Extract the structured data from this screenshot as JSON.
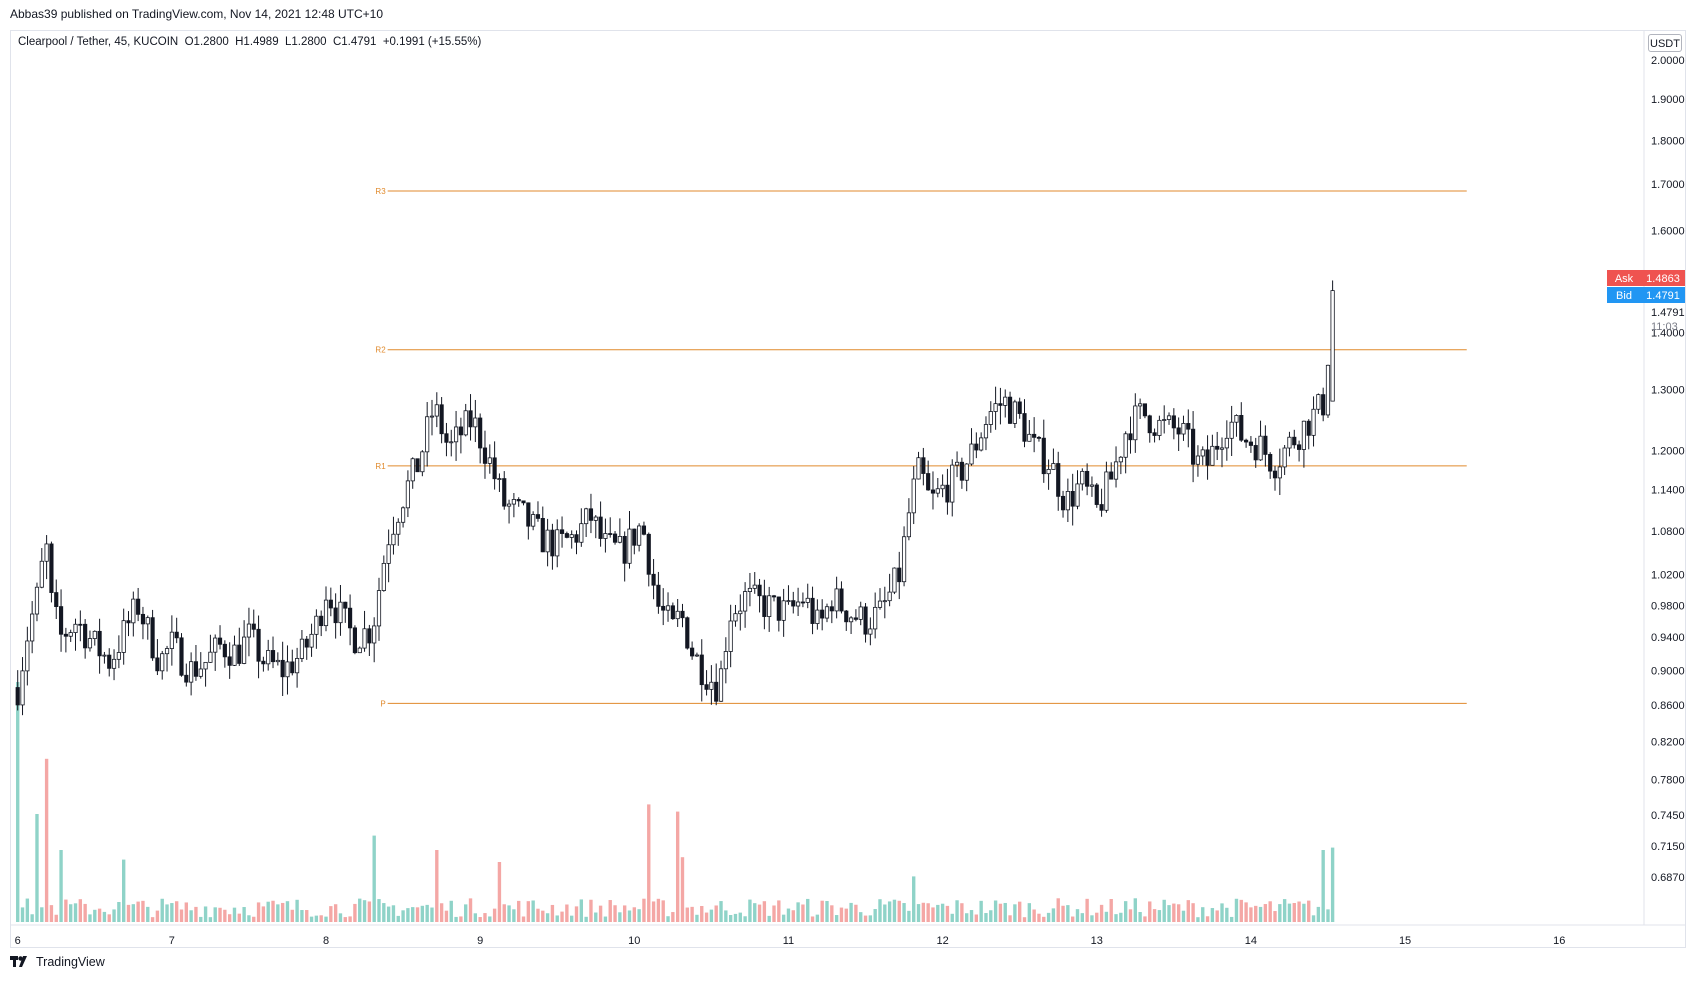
{
  "publish_line": "Abbas39 published on TradingView.com, Nov 14, 2021 12:48 UTC+10",
  "legend": "Clearpool / Tether, 45, KUCOIN  O1.2800  H1.4989  L1.2800  C1.4791  +0.1991 (+15.55%)",
  "currency_label": "USDT",
  "footer": {
    "brand": "TradingView",
    "logo_icon": "tradingview-logo-icon"
  },
  "colors": {
    "up": "#ffffff",
    "down": "#131722",
    "pivot": "#e08a2c",
    "vol_up": "#8fd3c8",
    "vol_down": "#f4a7a5",
    "ask": "#ef5350",
    "bid": "#2196f3"
  },
  "chart_data": {
    "type": "candlestick",
    "symbol": "Clearpool / Tether",
    "interval": "45",
    "exchange": "KUCOIN",
    "ohlc_last": {
      "open": 1.28,
      "high": 1.4989,
      "low": 1.28,
      "close": 1.4791,
      "change": 0.1991,
      "change_pct": 15.55
    },
    "y_axis": {
      "scale": "log",
      "ylim": [
        0.645,
        2.08
      ],
      "ticks": [
        "2.0000",
        "1.9000",
        "1.8000",
        "1.7000",
        "1.6000",
        "1.4000",
        "1.3000",
        "1.2000",
        "1.1400",
        "1.0800",
        "1.0200",
        "0.9800",
        "0.9400",
        "0.9000",
        "0.8600",
        "0.8200",
        "0.7800",
        "0.7450",
        "0.7150",
        "0.6870"
      ]
    },
    "x_axis": {
      "ticks": [
        "6",
        "7",
        "8",
        "9",
        "10",
        "11",
        "12",
        "13",
        "14",
        "15",
        "16"
      ],
      "xlim": [
        5.95,
        16.55
      ]
    },
    "pivot_levels": [
      {
        "label": "R3",
        "value": 1.685,
        "start_day": 8.4,
        "end_day": 15.4
      },
      {
        "label": "R2",
        "value": 1.369,
        "start_day": 8.4,
        "end_day": 15.4
      },
      {
        "label": "R1",
        "value": 1.176,
        "start_day": 8.4,
        "end_day": 15.4
      },
      {
        "label": "P",
        "value": 0.862,
        "start_day": 8.4,
        "end_day": 15.4
      }
    ],
    "price_labels": {
      "ask_label": "Ask",
      "ask": "1.4863",
      "bid_label": "Bid",
      "bid": "1.4791",
      "last": "1.4791",
      "countdown": "11:03"
    },
    "anchors": [
      [
        6.0,
        0.88
      ],
      [
        6.07,
        0.95
      ],
      [
        6.14,
        1.0
      ],
      [
        6.18,
        1.07
      ],
      [
        6.22,
        0.98
      ],
      [
        6.28,
        0.94
      ],
      [
        6.38,
        0.96
      ],
      [
        6.5,
        0.93
      ],
      [
        6.6,
        0.91
      ],
      [
        6.7,
        0.95
      ],
      [
        6.78,
        0.98
      ],
      [
        6.84,
        0.95
      ],
      [
        6.92,
        0.91
      ],
      [
        7.0,
        0.93
      ],
      [
        7.12,
        0.9
      ],
      [
        7.22,
        0.91
      ],
      [
        7.32,
        0.93
      ],
      [
        7.42,
        0.92
      ],
      [
        7.5,
        0.94
      ],
      [
        7.6,
        0.91
      ],
      [
        7.72,
        0.9
      ],
      [
        7.85,
        0.92
      ],
      [
        7.95,
        0.96
      ],
      [
        8.0,
        1.0
      ],
      [
        8.08,
        0.97
      ],
      [
        8.18,
        0.94
      ],
      [
        8.3,
        0.95
      ],
      [
        8.4,
        1.07
      ],
      [
        8.5,
        1.13
      ],
      [
        8.6,
        1.18
      ],
      [
        8.7,
        1.27
      ],
      [
        8.8,
        1.2
      ],
      [
        8.88,
        1.23
      ],
      [
        8.95,
        1.25
      ],
      [
        9.05,
        1.19
      ],
      [
        9.15,
        1.12
      ],
      [
        9.28,
        1.1
      ],
      [
        9.4,
        1.07
      ],
      [
        9.5,
        1.06
      ],
      [
        9.6,
        1.07
      ],
      [
        9.72,
        1.1
      ],
      [
        9.8,
        1.06
      ],
      [
        9.92,
        1.05
      ],
      [
        10.05,
        1.09
      ],
      [
        10.15,
        0.98
      ],
      [
        10.25,
        0.95
      ],
      [
        10.3,
        0.97
      ],
      [
        10.38,
        0.92
      ],
      [
        10.45,
        0.9
      ],
      [
        10.55,
        0.88
      ],
      [
        10.62,
        0.97
      ],
      [
        10.72,
        0.99
      ],
      [
        10.85,
        0.98
      ],
      [
        11.0,
        0.97
      ],
      [
        11.1,
        0.99
      ],
      [
        11.2,
        0.95
      ],
      [
        11.28,
        0.99
      ],
      [
        11.4,
        0.97
      ],
      [
        11.5,
        0.96
      ],
      [
        11.6,
        0.97
      ],
      [
        11.72,
        1.02
      ],
      [
        11.8,
        1.13
      ],
      [
        11.85,
        1.17
      ],
      [
        11.92,
        1.12
      ],
      [
        12.0,
        1.14
      ],
      [
        12.1,
        1.16
      ],
      [
        12.2,
        1.2
      ],
      [
        12.3,
        1.26
      ],
      [
        12.4,
        1.28
      ],
      [
        12.5,
        1.25
      ],
      [
        12.6,
        1.2
      ],
      [
        12.7,
        1.18
      ],
      [
        12.8,
        1.12
      ],
      [
        12.9,
        1.15
      ],
      [
        13.0,
        1.11
      ],
      [
        13.1,
        1.16
      ],
      [
        13.2,
        1.24
      ],
      [
        13.3,
        1.26
      ],
      [
        13.4,
        1.24
      ],
      [
        13.55,
        1.23
      ],
      [
        13.65,
        1.18
      ],
      [
        13.72,
        1.18
      ],
      [
        13.85,
        1.25
      ],
      [
        13.95,
        1.22
      ],
      [
        14.05,
        1.21
      ],
      [
        14.15,
        1.18
      ],
      [
        14.25,
        1.21
      ],
      [
        14.35,
        1.24
      ],
      [
        14.42,
        1.26
      ],
      [
        14.48,
        1.28
      ],
      [
        14.53,
        1.4791
      ]
    ],
    "volume_spikes": [
      {
        "day": 6.0,
        "value": 1.0,
        "color": "up"
      },
      {
        "day": 6.14,
        "value": 0.45,
        "color": "up"
      },
      {
        "day": 6.19,
        "value": 0.68,
        "color": "down"
      },
      {
        "day": 6.28,
        "value": 0.3,
        "color": "up"
      },
      {
        "day": 6.7,
        "value": 0.26,
        "color": "up"
      },
      {
        "day": 8.3,
        "value": 0.36,
        "color": "up"
      },
      {
        "day": 8.72,
        "value": 0.3,
        "color": "down"
      },
      {
        "day": 9.12,
        "value": 0.25,
        "color": "down"
      },
      {
        "day": 10.08,
        "value": 0.49,
        "color": "down"
      },
      {
        "day": 10.27,
        "value": 0.46,
        "color": "down"
      },
      {
        "day": 10.3,
        "value": 0.27,
        "color": "down"
      },
      {
        "day": 11.8,
        "value": 0.19,
        "color": "up"
      },
      {
        "day": 14.48,
        "value": 0.3,
        "color": "up"
      },
      {
        "day": 14.53,
        "value": 0.31,
        "color": "up"
      }
    ]
  }
}
